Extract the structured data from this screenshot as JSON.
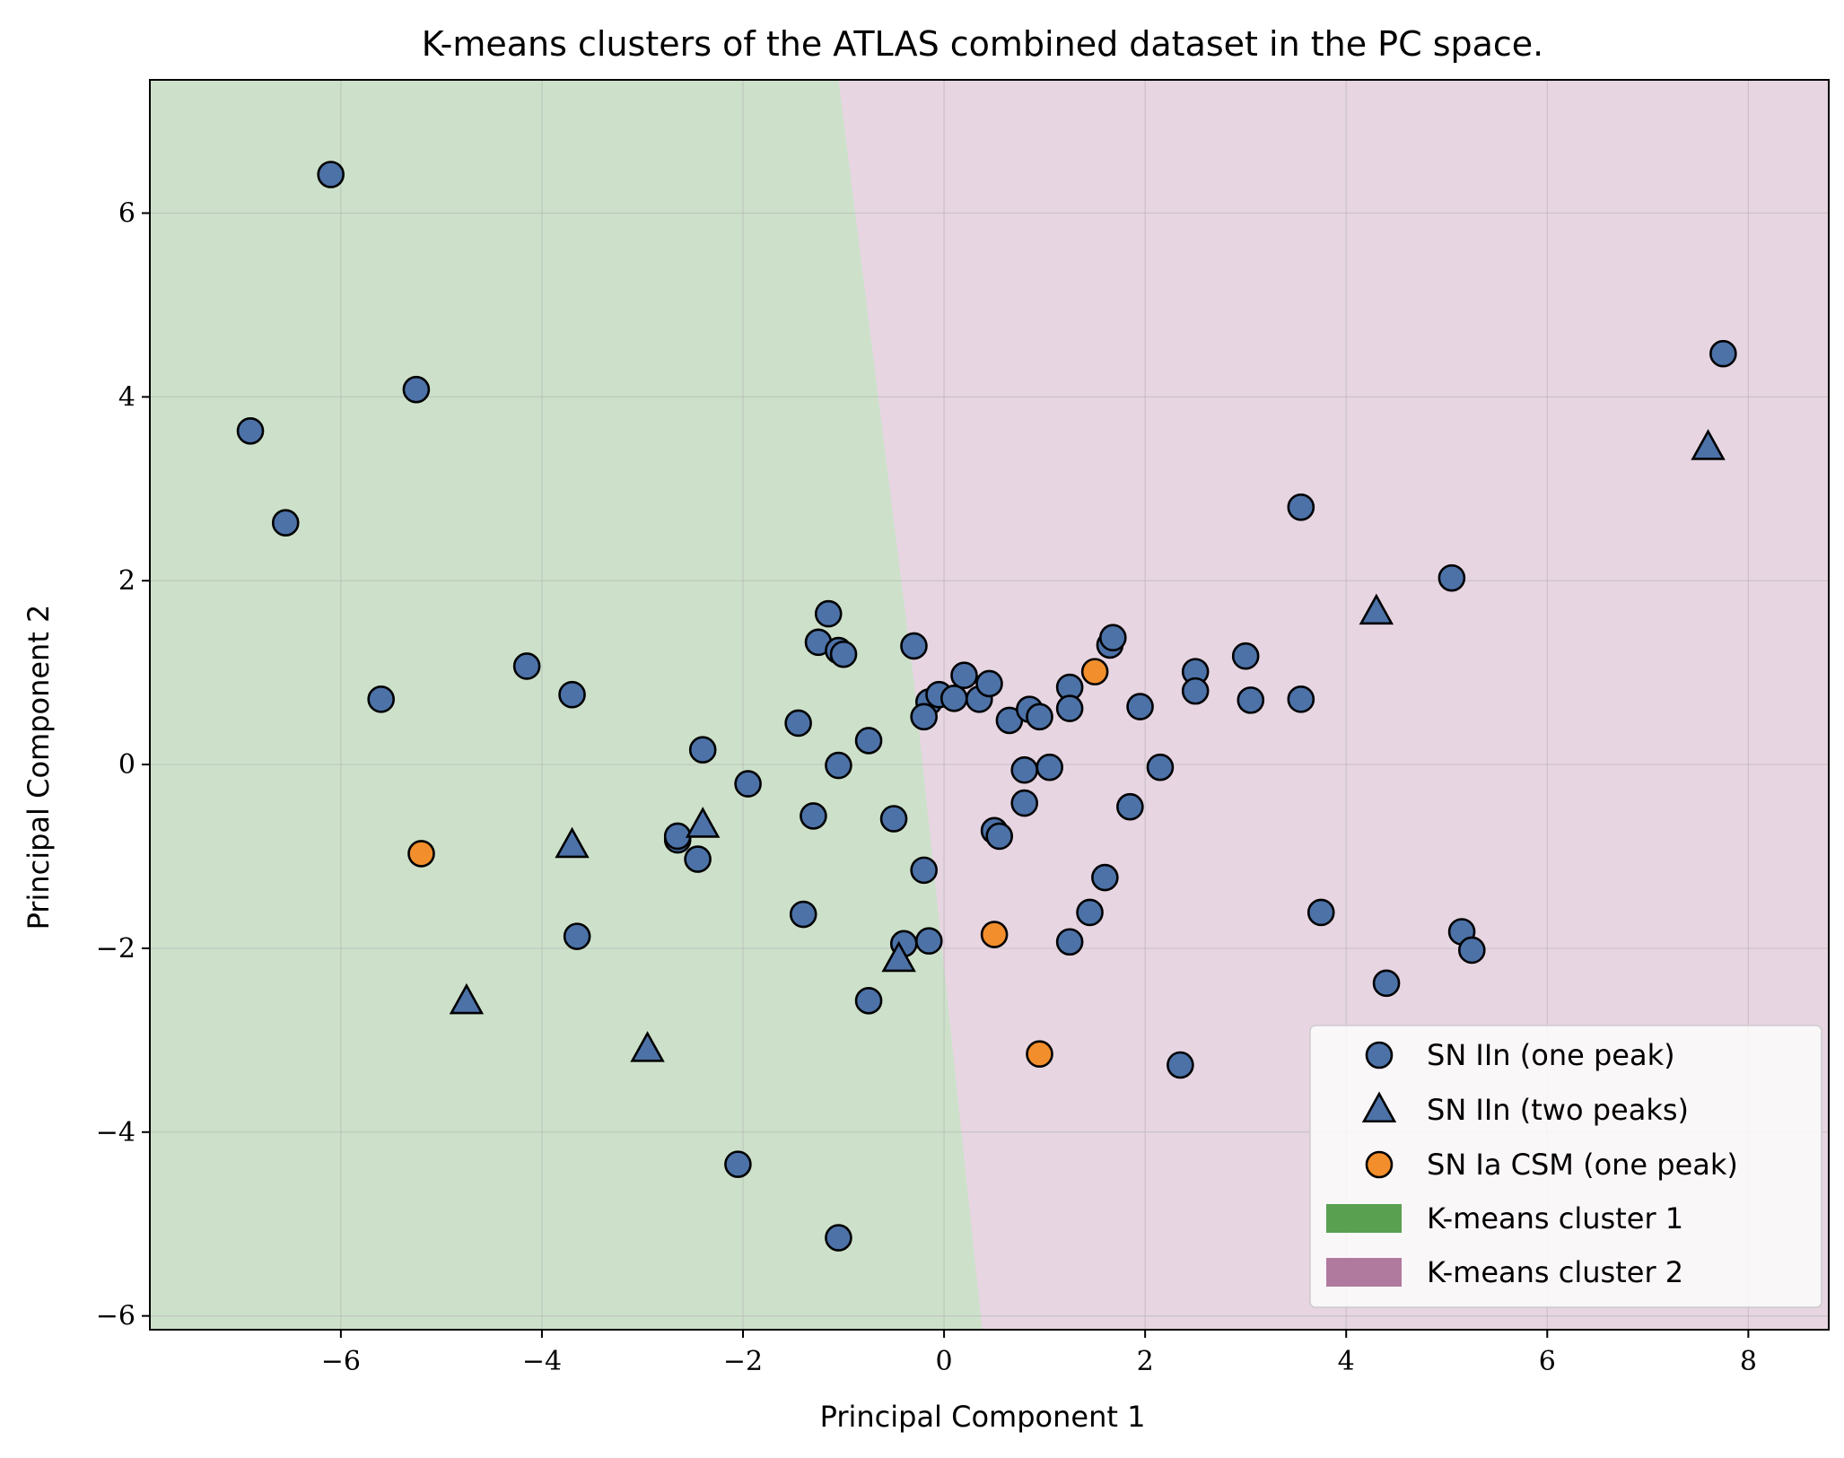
{
  "chart_data": {
    "type": "scatter",
    "title": "K-means clusters of the ATLAS combined dataset in the PC space.",
    "xlabel": "Principal Component 1",
    "ylabel": "Principal Component 2",
    "xlim": [
      -7.9,
      8.8
    ],
    "ylim": [
      -6.15,
      7.45
    ],
    "xticks": [
      -6,
      -4,
      -2,
      0,
      2,
      4,
      6,
      8
    ],
    "yticks": [
      -6,
      -4,
      -2,
      0,
      2,
      4,
      6
    ],
    "xtick_labels": [
      "−6",
      "−4",
      "−2",
      "0",
      "2",
      "4",
      "6",
      "8"
    ],
    "ytick_labels": [
      "−6",
      "−4",
      "−2",
      "0",
      "2",
      "4",
      "6"
    ],
    "grid": true,
    "legend_position": "lower-right",
    "regions": [
      {
        "name": "K-means cluster 1",
        "color": "#cde1ca",
        "legend_color": "#5aa051"
      },
      {
        "name": "K-means cluster 2",
        "color": "#e7d5e2",
        "legend_color": "#b07a9f"
      }
    ],
    "boundary": [
      [
        -1.05,
        7.45
      ],
      [
        -0.3,
        0.9
      ],
      [
        0.38,
        -6.15
      ]
    ],
    "series": [
      {
        "name": "SN IIn (one peak)",
        "marker": "circle",
        "color": "#4c72a8",
        "points": [
          [
            -6.1,
            6.42
          ],
          [
            -5.25,
            4.08
          ],
          [
            -6.9,
            3.63
          ],
          [
            -6.55,
            2.63
          ],
          [
            -5.6,
            0.71
          ],
          [
            -4.15,
            1.07
          ],
          [
            -3.7,
            0.76
          ],
          [
            -3.65,
            -1.87
          ],
          [
            -2.4,
            0.16
          ],
          [
            -2.65,
            -0.82
          ],
          [
            -2.65,
            -0.78
          ],
          [
            -2.45,
            -1.03
          ],
          [
            -1.95,
            -0.21
          ],
          [
            -1.45,
            0.45
          ],
          [
            -1.3,
            -0.56
          ],
          [
            -1.4,
            -1.63
          ],
          [
            -1.25,
            1.33
          ],
          [
            -1.15,
            1.64
          ],
          [
            -1.05,
            1.24
          ],
          [
            -1.0,
            1.2
          ],
          [
            -1.05,
            -0.01
          ],
          [
            -0.75,
            0.26
          ],
          [
            -0.5,
            -0.59
          ],
          [
            -0.3,
            1.29
          ],
          [
            -0.15,
            0.68
          ],
          [
            -0.05,
            0.76
          ],
          [
            0.1,
            0.72
          ],
          [
            0.2,
            0.97
          ],
          [
            -0.2,
            0.52
          ],
          [
            0.35,
            0.71
          ],
          [
            0.45,
            0.88
          ],
          [
            0.65,
            0.48
          ],
          [
            0.85,
            0.6
          ],
          [
            0.95,
            0.52
          ],
          [
            1.25,
            0.84
          ],
          [
            1.25,
            0.61
          ],
          [
            1.65,
            1.3
          ],
          [
            1.68,
            1.38
          ],
          [
            1.95,
            0.63
          ],
          [
            2.5,
            1.01
          ],
          [
            2.5,
            0.8
          ],
          [
            3.0,
            1.18
          ],
          [
            3.05,
            0.7
          ],
          [
            3.55,
            0.71
          ],
          [
            0.8,
            -0.06
          ],
          [
            1.05,
            -0.03
          ],
          [
            2.15,
            -0.03
          ],
          [
            0.5,
            -0.72
          ],
          [
            0.55,
            -0.78
          ],
          [
            0.8,
            -0.42
          ],
          [
            1.85,
            -0.46
          ],
          [
            -0.2,
            -1.15
          ],
          [
            1.6,
            -1.23
          ],
          [
            1.45,
            -1.61
          ],
          [
            1.25,
            -1.93
          ],
          [
            -0.4,
            -1.95
          ],
          [
            -0.15,
            -1.92
          ],
          [
            -0.75,
            -2.57
          ],
          [
            2.35,
            -3.27
          ],
          [
            3.75,
            -1.61
          ],
          [
            4.4,
            -2.38
          ],
          [
            5.15,
            -1.82
          ],
          [
            5.25,
            -2.02
          ],
          [
            3.55,
            2.8
          ],
          [
            5.05,
            2.03
          ],
          [
            7.75,
            4.47
          ],
          [
            -2.05,
            -4.35
          ],
          [
            -1.05,
            -5.15
          ]
        ]
      },
      {
        "name": "SN IIn (two peaks)",
        "marker": "triangle",
        "color": "#4c72a8",
        "points": [
          [
            -3.7,
            -0.88
          ],
          [
            -2.4,
            -0.66
          ],
          [
            -4.75,
            -2.58
          ],
          [
            -2.95,
            -3.1
          ],
          [
            -0.45,
            -2.12
          ],
          [
            4.3,
            1.66
          ],
          [
            7.6,
            3.45
          ]
        ]
      },
      {
        "name": "SN Ia CSM (one peak)",
        "marker": "circle",
        "color": "#f28e2b",
        "points": [
          [
            -5.2,
            -0.97
          ],
          [
            0.5,
            -1.85
          ],
          [
            0.95,
            -3.15
          ],
          [
            1.5,
            1.01
          ]
        ]
      }
    ]
  }
}
